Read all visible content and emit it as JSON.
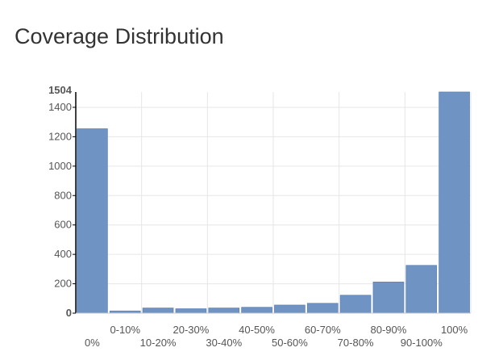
{
  "page": {
    "title": "Coverage Distribution"
  },
  "chart_data": {
    "type": "bar",
    "title": "Coverage Distribution",
    "xlabel": "",
    "ylabel": "",
    "categories": [
      "0%",
      "0-10%",
      "10-20%",
      "20-30%",
      "30-40%",
      "40-50%",
      "50-60%",
      "60-70%",
      "70-80%",
      "80-90%",
      "90-100%",
      "100%"
    ],
    "values": [
      1254,
      15,
      35,
      30,
      35,
      40,
      55,
      67,
      122,
      212,
      325,
      1504
    ],
    "ylim": [
      0,
      1504
    ],
    "y_ticks": [
      0,
      200,
      400,
      600,
      800,
      1000,
      1200,
      1400
    ],
    "y_max_label": "1504",
    "grid": true,
    "legend": "none",
    "colors": {
      "bar": "#6f93c3",
      "bar_edge": "#5f84b5",
      "grid": "#e6e6e6",
      "axis": "#000000",
      "label": "#555555"
    }
  }
}
